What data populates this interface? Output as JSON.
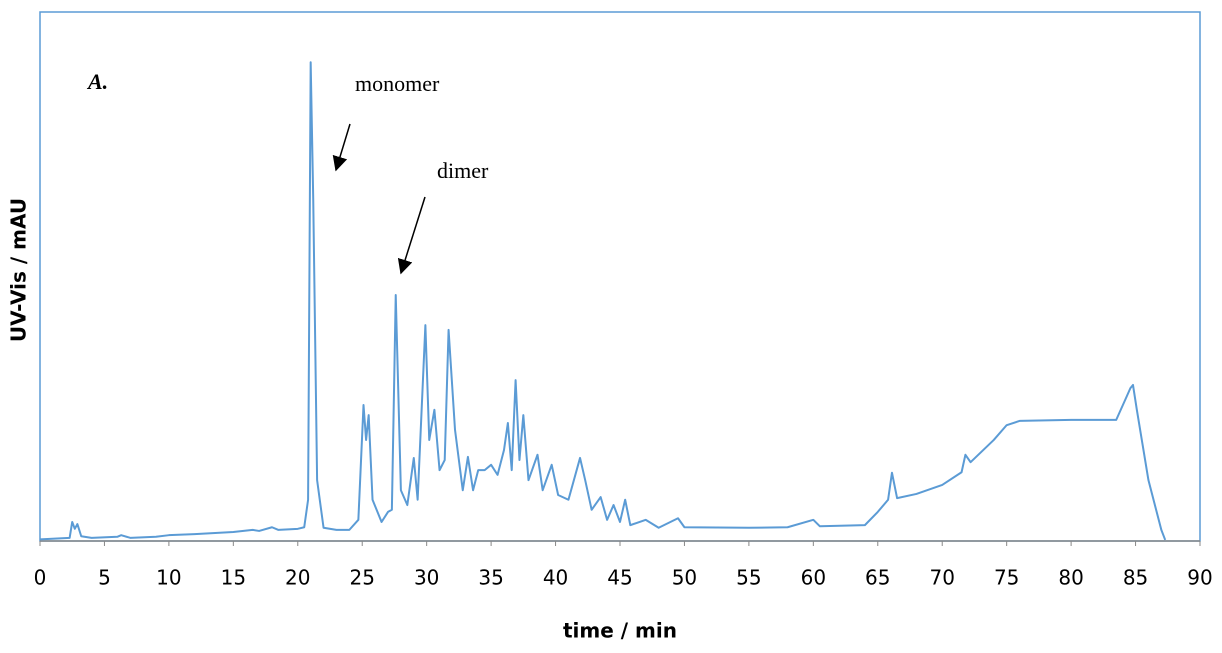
{
  "chart_data": {
    "type": "line",
    "xlabel": "time / min",
    "ylabel": "UV-Vis / mAU",
    "annotations": [
      "A.",
      "monomer",
      "dimer"
    ],
    "color": "#5b9bd5",
    "xlim": [
      0,
      90
    ],
    "xticks": [
      0,
      5,
      10,
      15,
      20,
      25,
      30,
      35,
      40,
      45,
      50,
      55,
      60,
      65,
      70,
      75,
      80,
      85,
      90
    ],
    "ylim": [
      0,
      100
    ],
    "x": [
      0,
      2.3,
      2.5,
      2.7,
      2.9,
      3.2,
      4,
      6,
      6.3,
      7,
      9,
      10,
      12,
      15,
      16.5,
      17,
      18,
      18.5,
      20,
      20.5,
      20.8,
      21.0,
      21.2,
      21.5,
      22,
      23,
      24,
      24.7,
      25.1,
      25.3,
      25.5,
      25.8,
      26.5,
      27,
      27.3,
      27.6,
      28,
      28.5,
      29,
      29.3,
      29.9,
      30.2,
      30.6,
      31,
      31.4,
      31.7,
      32.2,
      32.8,
      33.2,
      33.6,
      34,
      34.5,
      35,
      35.5,
      36,
      36.3,
      36.6,
      36.9,
      37.2,
      37.5,
      37.9,
      38.6,
      39,
      39.7,
      40.2,
      41,
      41.9,
      42.3,
      42.8,
      43.5,
      44,
      44.5,
      45,
      45.4,
      45.8,
      47,
      48,
      49.5,
      50,
      55,
      58,
      60,
      60.5,
      64,
      65,
      65.8,
      66.1,
      66.5,
      68,
      70,
      71.5,
      71.8,
      72.2,
      74,
      75,
      76,
      80,
      83.5,
      84.2,
      84.6,
      84.8,
      85.1,
      86,
      87,
      87.3
    ],
    "values": [
      0.3,
      0.6,
      3.6,
      2.3,
      3.2,
      0.9,
      0.6,
      0.8,
      1.1,
      0.6,
      0.8,
      1.1,
      1.3,
      1.7,
      2.1,
      1.9,
      2.6,
      2.1,
      2.3,
      2.6,
      7.8,
      90.5,
      64.5,
      11.5,
      2.5,
      2.1,
      2.1,
      4,
      25.7,
      19.1,
      23.8,
      7.8,
      3.6,
      5.5,
      5.9,
      46.5,
      9.6,
      6.8,
      15.7,
      7.8,
      40.8,
      19.1,
      24.8,
      13.4,
      15.3,
      39.9,
      21,
      9.6,
      15.9,
      9.6,
      13.4,
      13.4,
      14.4,
      12.5,
      17.2,
      22.3,
      13.4,
      30.4,
      15.3,
      23.8,
      11.5,
      16.3,
      9.6,
      14.4,
      8.7,
      7.8,
      15.7,
      11.5,
      5.9,
      8.3,
      4,
      6.8,
      3.6,
      7.8,
      3,
      4,
      2.5,
      4.3,
      2.6,
      2.5,
      2.6,
      4,
      2.8,
      3,
      5.5,
      7.8,
      12.9,
      8.1,
      8.9,
      10.6,
      13,
      16.3,
      14.9,
      19.1,
      21.9,
      22.7,
      22.9,
      22.9,
      26.7,
      28.9,
      29.5,
      24.8,
      11.5,
      2.1,
      0.2
    ]
  }
}
